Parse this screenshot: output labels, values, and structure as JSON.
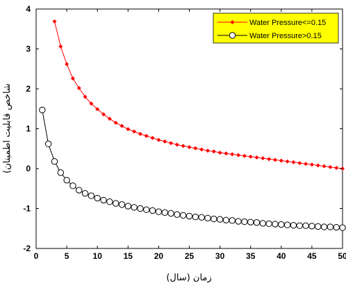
{
  "chart_data": {
    "type": "line",
    "title": "",
    "xlabel": "زمان (سال)",
    "ylabel": "شاخص قابلیت اطمینان)",
    "xlim": [
      0,
      50
    ],
    "ylim": [
      -2,
      4
    ],
    "xticks": [
      0,
      5,
      10,
      15,
      20,
      25,
      30,
      35,
      40,
      45,
      50
    ],
    "yticks": [
      -2,
      -1,
      0,
      1,
      2,
      3,
      4
    ],
    "grid": false,
    "legend_position": "top-right",
    "legend_background": "#ffff00",
    "series": [
      {
        "name": "Water Pressure<=0.15",
        "color": "#ff0000",
        "marker": "filled-diamond",
        "x": [
          3,
          4,
          5,
          6,
          7,
          8,
          9,
          10,
          11,
          12,
          13,
          14,
          15,
          16,
          17,
          18,
          19,
          20,
          21,
          22,
          23,
          24,
          25,
          26,
          27,
          28,
          29,
          30,
          31,
          32,
          33,
          34,
          35,
          36,
          37,
          38,
          39,
          40,
          41,
          42,
          43,
          44,
          45,
          46,
          47,
          48,
          49,
          50
        ],
        "values": [
          3.69,
          3.06,
          2.62,
          2.26,
          2.02,
          1.8,
          1.63,
          1.49,
          1.36,
          1.25,
          1.15,
          1.07,
          0.99,
          0.93,
          0.87,
          0.82,
          0.77,
          0.72,
          0.68,
          0.64,
          0.6,
          0.57,
          0.54,
          0.51,
          0.48,
          0.45,
          0.43,
          0.4,
          0.38,
          0.36,
          0.34,
          0.32,
          0.3,
          0.28,
          0.26,
          0.24,
          0.22,
          0.2,
          0.18,
          0.16,
          0.14,
          0.12,
          0.1,
          0.08,
          0.06,
          0.04,
          0.02,
          0.0
        ]
      },
      {
        "name": "Water Pressure>0.15",
        "color": "#000000",
        "marker": "open-circle",
        "x": [
          1,
          2,
          3,
          4,
          5,
          6,
          7,
          8,
          9,
          10,
          11,
          12,
          13,
          14,
          15,
          16,
          17,
          18,
          19,
          20,
          21,
          22,
          23,
          24,
          25,
          26,
          27,
          28,
          29,
          30,
          31,
          32,
          33,
          34,
          35,
          36,
          37,
          38,
          39,
          40,
          41,
          42,
          43,
          44,
          45,
          46,
          47,
          48,
          49,
          50
        ],
        "values": [
          1.47,
          0.62,
          0.18,
          -0.1,
          -0.29,
          -0.43,
          -0.54,
          -0.62,
          -0.68,
          -0.74,
          -0.79,
          -0.83,
          -0.87,
          -0.9,
          -0.94,
          -0.97,
          -1.0,
          -1.03,
          -1.05,
          -1.08,
          -1.1,
          -1.12,
          -1.15,
          -1.17,
          -1.19,
          -1.21,
          -1.22,
          -1.24,
          -1.26,
          -1.27,
          -1.29,
          -1.3,
          -1.32,
          -1.33,
          -1.34,
          -1.35,
          -1.37,
          -1.38,
          -1.39,
          -1.4,
          -1.41,
          -1.42,
          -1.43,
          -1.43,
          -1.44,
          -1.45,
          -1.46,
          -1.46,
          -1.47,
          -1.48
        ]
      }
    ]
  }
}
